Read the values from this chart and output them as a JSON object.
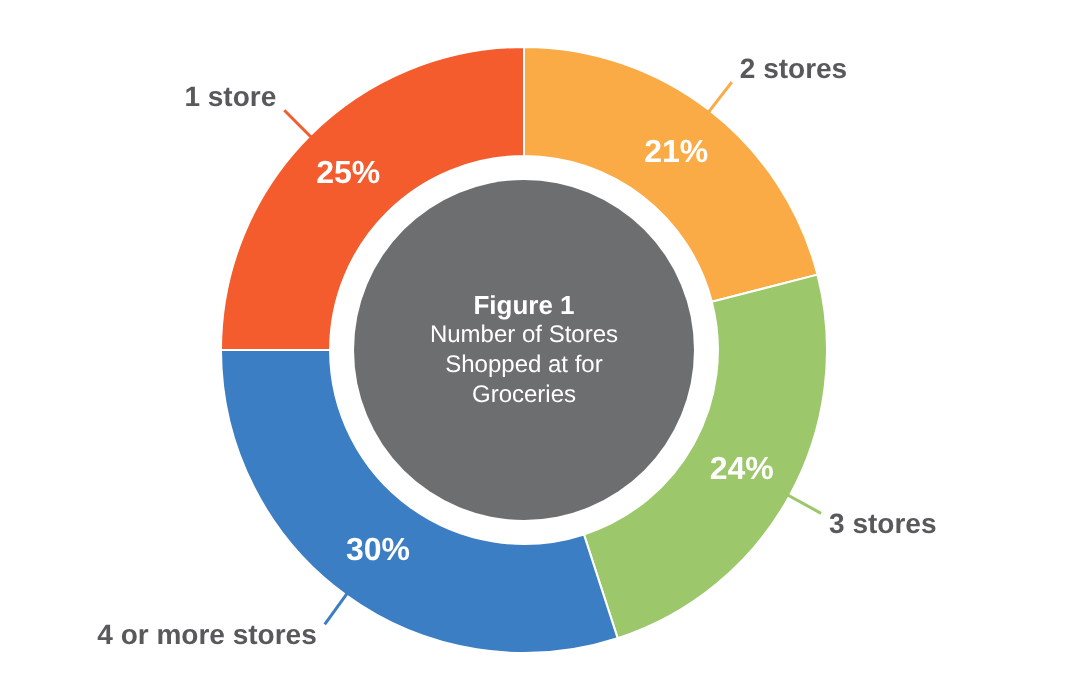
{
  "chart_data": {
    "type": "donut",
    "title": "Figure 1",
    "subtitle": "Number of Stores Shopped at for Groceries",
    "categories": [
      "2 stores",
      "3 stores",
      "4 or more stores",
      "1 store"
    ],
    "values": [
      21,
      24,
      30,
      25
    ],
    "value_labels": [
      "21%",
      "24%",
      "30%",
      "25%"
    ],
    "colors": [
      "#fbab45",
      "#9cc76b",
      "#3c7ec3",
      "#f45b2d"
    ],
    "legend": false
  }
}
